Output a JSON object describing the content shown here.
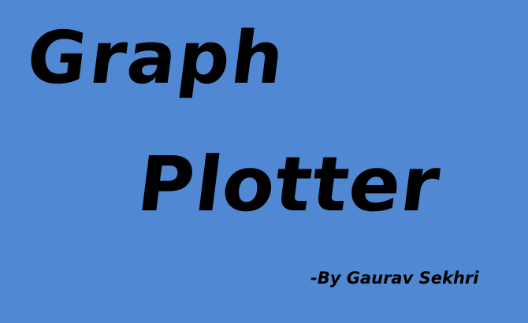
{
  "colors": {
    "background": "#5188d3",
    "text": "#000000"
  },
  "splash": {
    "title_line_1": "Graph",
    "title_line_2": "Plotter",
    "byline": "-By Gaurav  Sekhri"
  }
}
